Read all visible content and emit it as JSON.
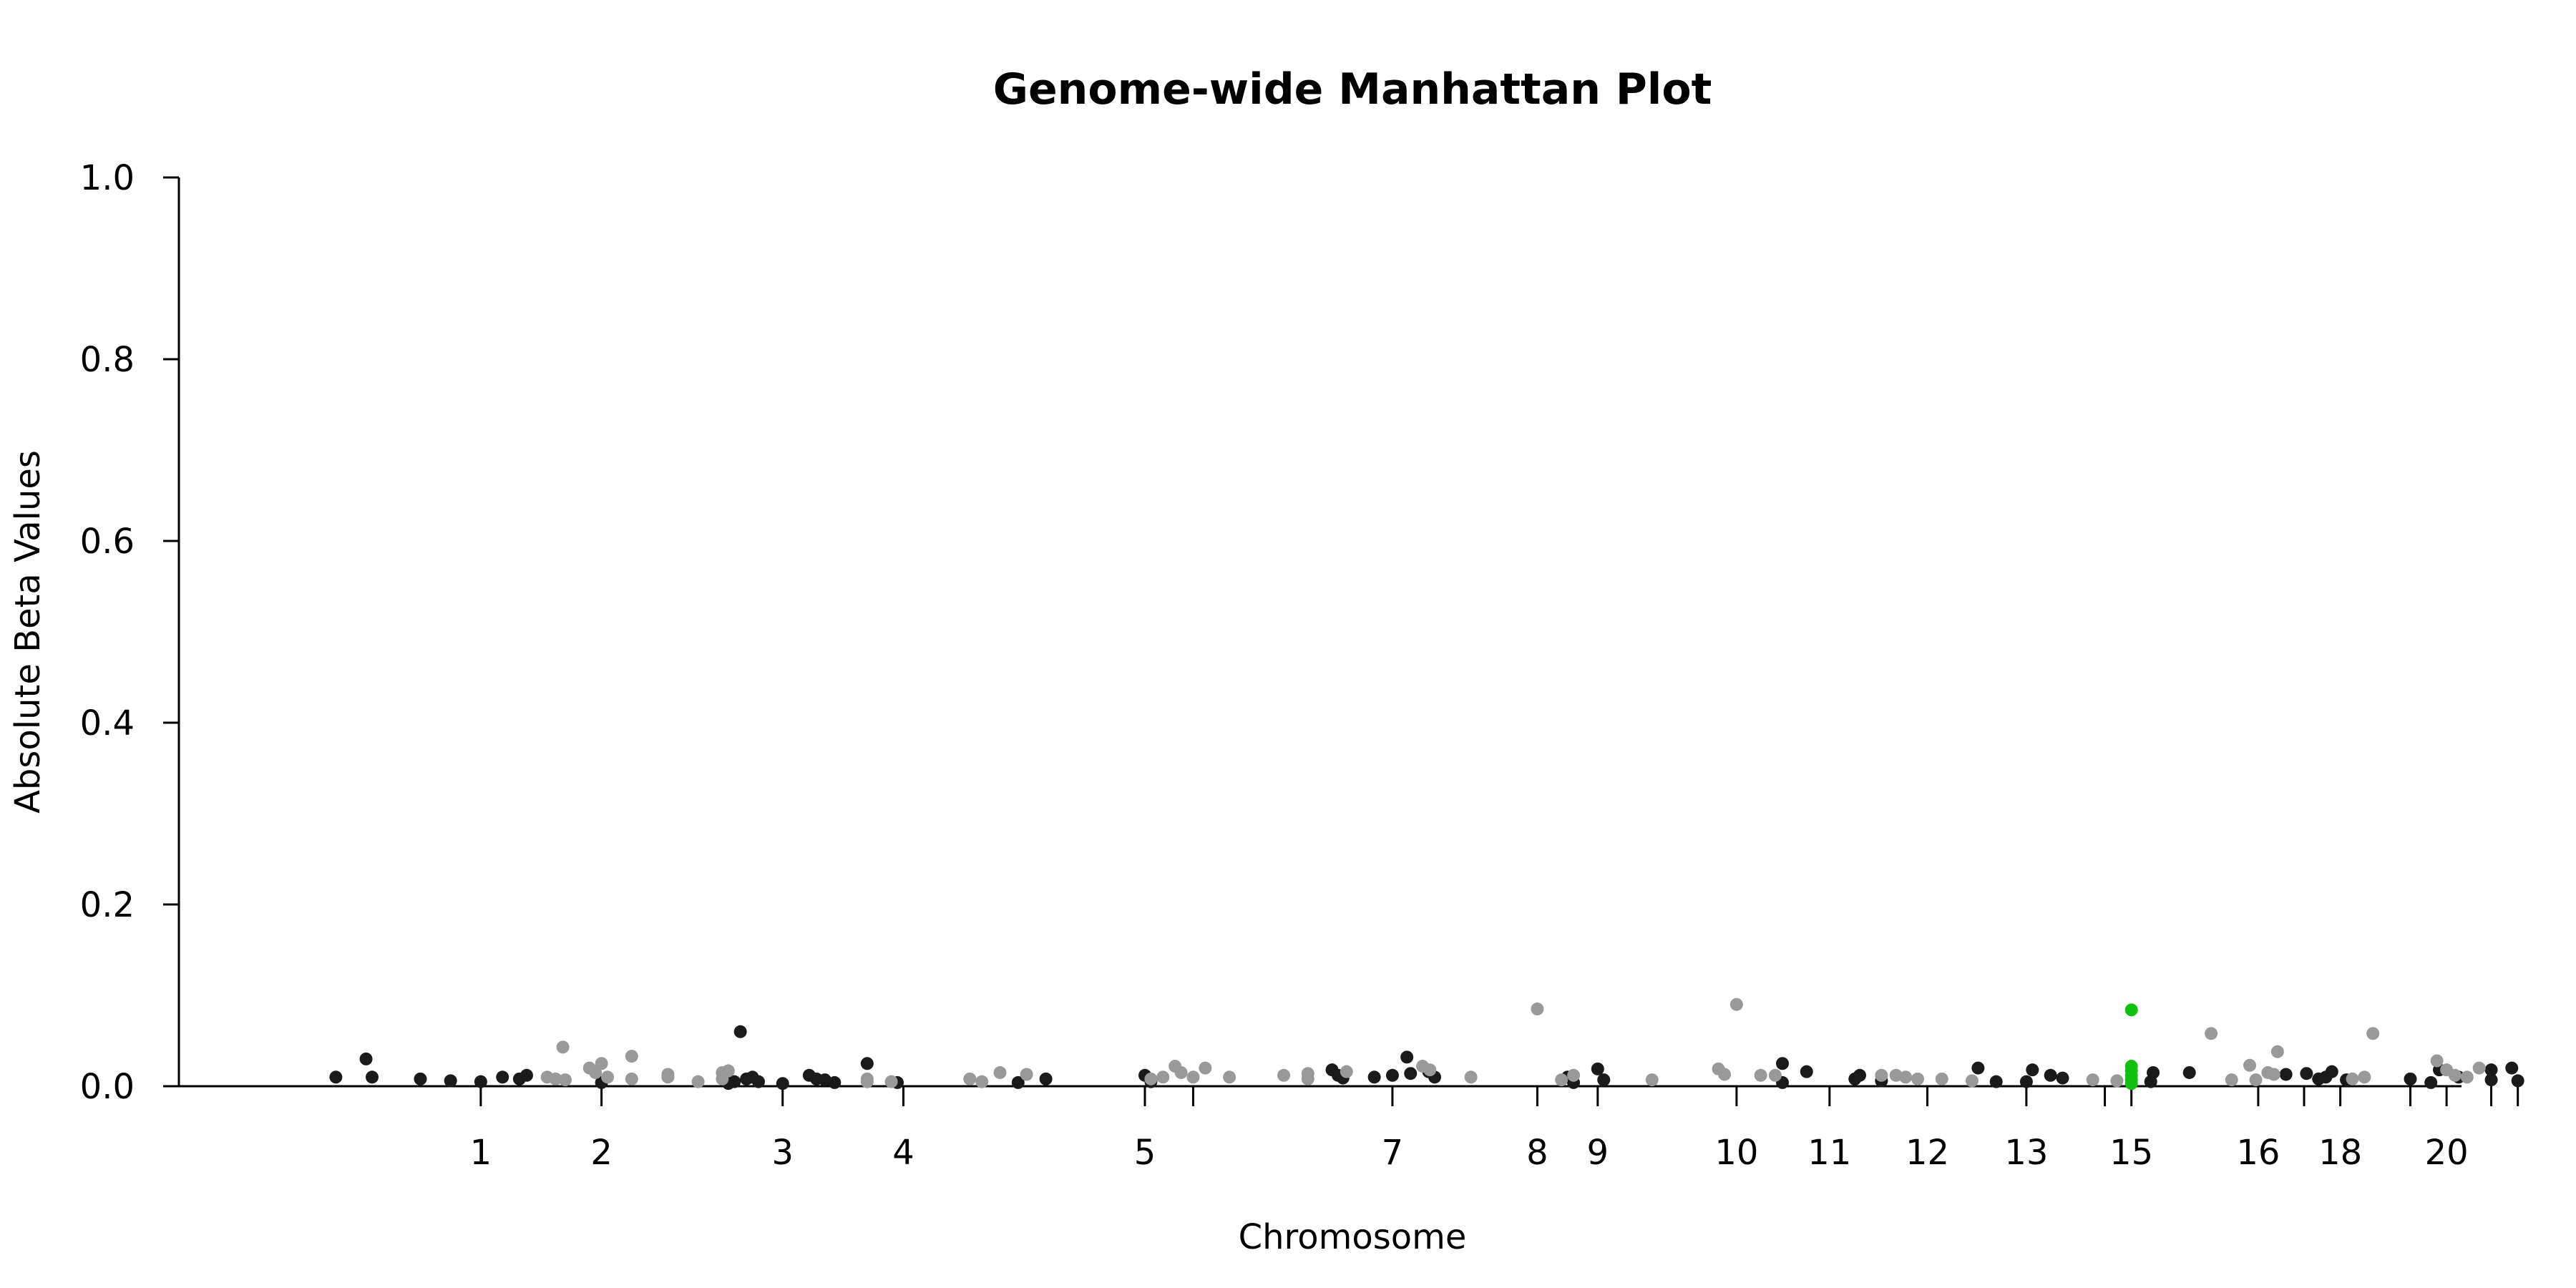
{
  "chart_data": {
    "type": "scatter",
    "title": "Genome-wide Manhattan Plot",
    "xlabel": "Chromosome",
    "ylabel": "Absolute Beta Values",
    "ylim": [
      0,
      1.0
    ],
    "yticks": [
      "0.0",
      "0.2",
      "0.4",
      "0.6",
      "0.8",
      "1.0"
    ],
    "xticks": [
      {
        "label": "1",
        "x": 4.0
      },
      {
        "label": "2",
        "x": 5.0
      },
      {
        "label": "3",
        "x": 6.5
      },
      {
        "label": "4",
        "x": 7.5
      },
      {
        "label": "5",
        "x": 9.5
      },
      {
        "label": "",
        "x": 9.9
      },
      {
        "label": "7",
        "x": 11.55
      },
      {
        "label": "8",
        "x": 12.75
      },
      {
        "label": "9",
        "x": 13.25
      },
      {
        "label": "10",
        "x": 14.4
      },
      {
        "label": "11",
        "x": 15.17
      },
      {
        "label": "12",
        "x": 15.98
      },
      {
        "label": "13",
        "x": 16.8
      },
      {
        "label": "",
        "x": 17.45
      },
      {
        "label": "15",
        "x": 17.67
      },
      {
        "label": "16",
        "x": 18.72
      },
      {
        "label": "",
        "x": 19.1
      },
      {
        "label": "18",
        "x": 19.4
      },
      {
        "label": "",
        "x": 19.98
      },
      {
        "label": "20",
        "x": 20.28
      },
      {
        "label": "",
        "x": 20.65
      },
      {
        "label": "",
        "x": 20.87
      }
    ],
    "grid": false,
    "legend": "none",
    "colors": {
      "dark": "#1a1a1a",
      "light": "#999999",
      "highlight": "#11c011"
    },
    "series": [
      {
        "color": "dark",
        "points": [
          [
            2.8,
            0.01
          ],
          [
            3.05,
            0.03
          ],
          [
            3.1,
            0.01
          ],
          [
            3.5,
            0.008
          ],
          [
            3.75,
            0.006
          ],
          [
            4.0,
            0.005
          ],
          [
            4.18,
            0.01
          ],
          [
            4.32,
            0.008
          ],
          [
            4.38,
            0.012
          ],
          [
            5.0,
            0.004
          ],
          [
            6.15,
            0.06
          ],
          [
            6.2,
            0.008
          ],
          [
            6.25,
            0.01
          ],
          [
            6.1,
            0.005
          ],
          [
            6.05,
            0.003
          ],
          [
            6.3,
            0.005
          ],
          [
            6.5,
            0.003
          ],
          [
            6.72,
            0.012
          ],
          [
            6.78,
            0.008
          ],
          [
            6.85,
            0.007
          ],
          [
            6.93,
            0.004
          ],
          [
            7.2,
            0.025
          ],
          [
            7.45,
            0.004
          ],
          [
            8.45,
            0.004
          ],
          [
            8.68,
            0.008
          ],
          [
            9.5,
            0.012
          ],
          [
            9.55,
            0.005
          ],
          [
            11.05,
            0.018
          ],
          [
            11.1,
            0.012
          ],
          [
            11.14,
            0.009
          ],
          [
            11.4,
            0.01
          ],
          [
            11.55,
            0.012
          ],
          [
            11.67,
            0.032
          ],
          [
            11.7,
            0.014
          ],
          [
            11.85,
            0.016
          ],
          [
            11.9,
            0.01
          ],
          [
            13.25,
            0.019
          ],
          [
            13.3,
            0.007
          ],
          [
            13.0,
            0.01
          ],
          [
            13.05,
            0.004
          ],
          [
            14.78,
            0.025
          ],
          [
            14.78,
            0.004
          ],
          [
            14.98,
            0.016
          ],
          [
            15.38,
            0.008
          ],
          [
            15.42,
            0.012
          ],
          [
            15.6,
            0.006
          ],
          [
            16.4,
            0.02
          ],
          [
            16.55,
            0.005
          ],
          [
            16.8,
            0.005
          ],
          [
            16.85,
            0.018
          ],
          [
            17.0,
            0.012
          ],
          [
            17.1,
            0.009
          ],
          [
            17.85,
            0.015
          ],
          [
            17.83,
            0.005
          ],
          [
            18.15,
            0.015
          ],
          [
            18.95,
            0.013
          ],
          [
            19.12,
            0.014
          ],
          [
            19.22,
            0.008
          ],
          [
            19.28,
            0.01
          ],
          [
            19.33,
            0.016
          ],
          [
            19.45,
            0.007
          ],
          [
            19.98,
            0.008
          ],
          [
            20.15,
            0.004
          ],
          [
            20.22,
            0.018
          ],
          [
            20.38,
            0.01
          ],
          [
            20.65,
            0.018
          ],
          [
            20.65,
            0.007
          ],
          [
            20.82,
            0.02
          ],
          [
            20.87,
            0.006
          ]
        ]
      },
      {
        "color": "light",
        "points": [
          [
            4.55,
            0.01
          ],
          [
            4.62,
            0.008
          ],
          [
            4.7,
            0.007
          ],
          [
            4.68,
            0.043
          ],
          [
            4.9,
            0.02
          ],
          [
            4.95,
            0.015
          ],
          [
            5.0,
            0.025
          ],
          [
            5.05,
            0.01
          ],
          [
            5.25,
            0.033
          ],
          [
            5.25,
            0.008
          ],
          [
            5.55,
            0.01
          ],
          [
            5.55,
            0.013
          ],
          [
            5.8,
            0.005
          ],
          [
            6.0,
            0.015
          ],
          [
            6.05,
            0.017
          ],
          [
            6.0,
            0.008
          ],
          [
            7.2,
            0.008
          ],
          [
            7.2,
            0.005
          ],
          [
            7.4,
            0.005
          ],
          [
            8.05,
            0.008
          ],
          [
            8.15,
            0.005
          ],
          [
            8.3,
            0.015
          ],
          [
            8.52,
            0.013
          ],
          [
            9.55,
            0.008
          ],
          [
            9.65,
            0.01
          ],
          [
            9.75,
            0.022
          ],
          [
            9.8,
            0.015
          ],
          [
            9.9,
            0.01
          ],
          [
            10.0,
            0.02
          ],
          [
            10.2,
            0.01
          ],
          [
            10.65,
            0.012
          ],
          [
            10.85,
            0.014
          ],
          [
            10.85,
            0.008
          ],
          [
            11.17,
            0.016
          ],
          [
            11.8,
            0.022
          ],
          [
            11.86,
            0.018
          ],
          [
            12.2,
            0.01
          ],
          [
            12.75,
            0.085
          ],
          [
            12.95,
            0.007
          ],
          [
            13.05,
            0.012
          ],
          [
            13.7,
            0.007
          ],
          [
            14.25,
            0.019
          ],
          [
            14.3,
            0.013
          ],
          [
            14.4,
            0.09
          ],
          [
            14.6,
            0.012
          ],
          [
            14.72,
            0.012
          ],
          [
            15.6,
            0.012
          ],
          [
            15.72,
            0.012
          ],
          [
            15.8,
            0.01
          ],
          [
            15.9,
            0.008
          ],
          [
            16.1,
            0.008
          ],
          [
            16.35,
            0.006
          ],
          [
            17.35,
            0.007
          ],
          [
            17.55,
            0.006
          ],
          [
            18.33,
            0.058
          ],
          [
            18.5,
            0.007
          ],
          [
            18.65,
            0.023
          ],
          [
            18.7,
            0.007
          ],
          [
            18.8,
            0.015
          ],
          [
            18.85,
            0.013
          ],
          [
            18.88,
            0.038
          ],
          [
            19.5,
            0.008
          ],
          [
            19.6,
            0.01
          ],
          [
            19.67,
            0.058
          ],
          [
            20.2,
            0.028
          ],
          [
            20.28,
            0.018
          ],
          [
            20.35,
            0.012
          ],
          [
            20.45,
            0.01
          ],
          [
            20.55,
            0.02
          ]
        ]
      },
      {
        "color": "highlight",
        "points": [
          [
            17.67,
            0.084
          ],
          [
            17.67,
            0.022
          ],
          [
            17.67,
            0.017
          ],
          [
            17.67,
            0.012
          ],
          [
            17.67,
            0.007
          ],
          [
            17.67,
            0.003
          ]
        ]
      }
    ]
  }
}
